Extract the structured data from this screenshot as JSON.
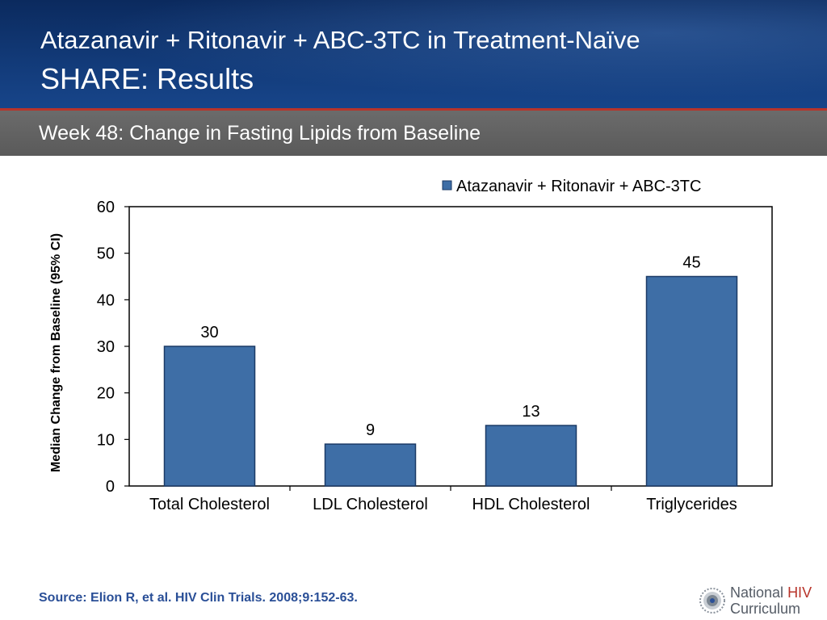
{
  "header": {
    "title_line1": "Atazanavir + Ritonavir + ABC-3TC in Treatment-Naïve",
    "title_line2": "SHARE: Results",
    "subtitle": "Week 48: Change in Fasting Lipids from Baseline"
  },
  "colors": {
    "bar": "#3e6ea6",
    "bar_edge": "#1b3a66",
    "header_bg": "#123a78",
    "subheader_bg": "#636363",
    "accent_rule": "#b8342a",
    "source_text": "#2a4f97"
  },
  "chart_data": {
    "type": "bar",
    "categories": [
      "Total Cholesterol",
      "LDL Cholesterol",
      "HDL Cholesterol",
      "Triglycerides"
    ],
    "series": [
      {
        "name": "Atazanavir + Ritonavir + ABC-3TC",
        "values": [
          30,
          9,
          13,
          45
        ]
      }
    ],
    "data_labels": [
      "30",
      "9",
      "13",
      "45"
    ],
    "ylabel": "Median Change from Baseline (95% CI)",
    "xlabel": "",
    "ylim": [
      0,
      60
    ],
    "yticks": [
      0,
      10,
      20,
      30,
      40,
      50,
      60
    ],
    "grid": false,
    "legend_position": "top-right"
  },
  "footer": {
    "source": "Source: Elion R, et al. HIV Clin Trials. 2008;9:152-63.",
    "logo_word1": "National",
    "logo_word2": "HIV",
    "logo_word3": "Curriculum",
    "logo_icon": "starburst-icon"
  }
}
